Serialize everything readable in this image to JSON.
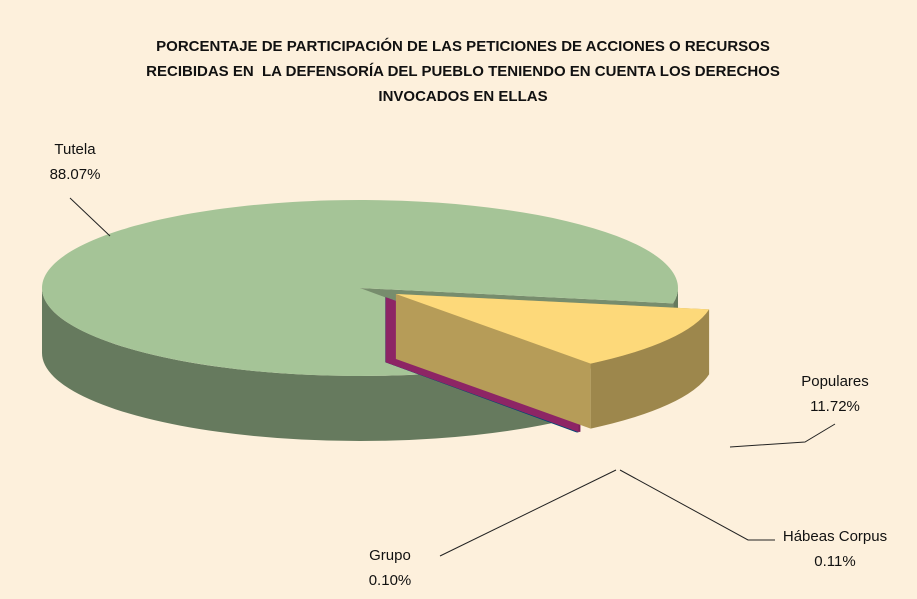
{
  "chart_data": {
    "type": "pie3d",
    "title": [
      "PORCENTAJE DE PARTICIPACIÓN DE LAS PETICIONES DE ACCIONES O RECURSOS",
      "RECIBIDAS EN  LA DEFENSORÍA DEL PUEBLO TENIENDO EN CUENTA LOS DERECHOS",
      "INVOCADOS EN ELLAS"
    ],
    "categories": [
      "Tutela",
      "Populares",
      "Hábeas Corpus",
      "Grupo"
    ],
    "values": [
      88.07,
      11.72,
      0.11,
      0.1
    ],
    "value_labels": [
      "88.07%",
      "11.72%",
      "0.11%",
      "0.10%"
    ],
    "colors": [
      "#a5c497",
      "#fdd97a",
      "#c4348c",
      "#0062a3"
    ]
  }
}
